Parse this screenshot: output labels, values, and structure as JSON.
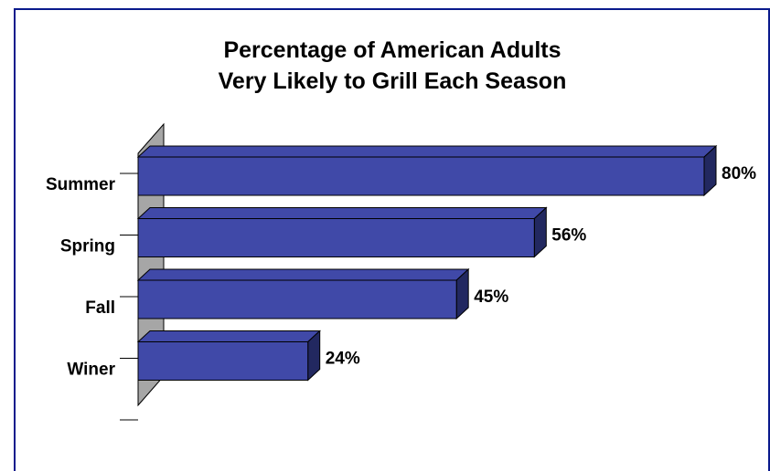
{
  "chart_data": {
    "type": "bar",
    "orientation": "horizontal",
    "title": [
      "Percentage of American Adults",
      "Very Likely to Grill Each Season"
    ],
    "categories": [
      "Summer",
      "Spring",
      "Fall",
      "Winer"
    ],
    "values": [
      80,
      56,
      45,
      24
    ],
    "value_labels": [
      "80%",
      "56%",
      "45%",
      "24%"
    ],
    "xlim": [
      0,
      80
    ],
    "style": "3d",
    "bar_color": "#4049a8",
    "bar_side_color": "#222860",
    "wall_color": "#a6a6a6"
  }
}
